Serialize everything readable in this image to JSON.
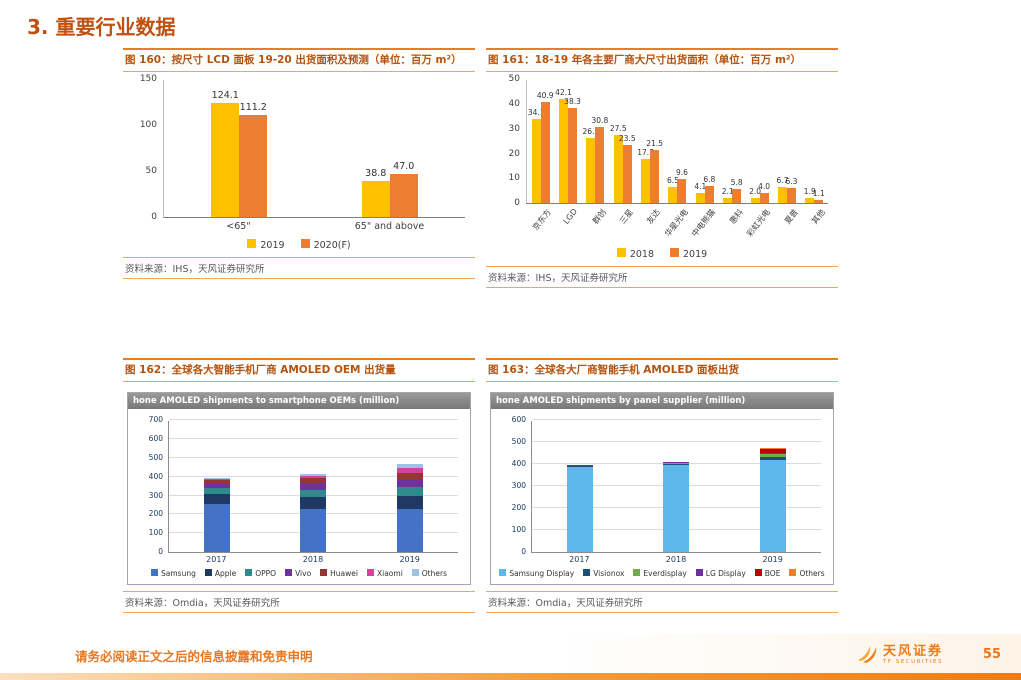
{
  "slide": {
    "title": "3. 重要行业数据",
    "footer": {
      "disclaimer": "请务必阅读正文之后的信息披露和免责申明",
      "brand_name": "天风证券",
      "brand_sub": "TF SECURITIES",
      "page": "55"
    }
  },
  "figures": [
    {
      "title": "图 160：按尺寸 LCD 面板 19-20 出货面积及预测（单位：百万 m²）",
      "source": "资料来源：IHS，天风证券研究所"
    },
    {
      "title": "图 161：18-19 年各主要厂商大尺寸出货面积（单位：百万 m²）",
      "source": "资料来源：IHS，天风证券研究所"
    },
    {
      "title": "图 162：全球各大智能手机厂商 AMOLED OEM 出货量",
      "source": "资料来源：Omdia，天风证券研究所"
    },
    {
      "title": "图 163：全球各大厂商智能手机 AMOLED 面板出货",
      "source": "资料来源：Omdia，天风证券研究所"
    }
  ],
  "chart_data": [
    {
      "type": "bar",
      "title": "按尺寸 LCD 面板 19-20 出货面积及预测（单位：百万 m²）",
      "categories": [
        "<65\"",
        "65\" and above"
      ],
      "series": [
        {
          "name": "2019",
          "color": "#FFC000",
          "values": [
            124.1,
            38.8
          ]
        },
        {
          "name": "2020(F)",
          "color": "#ED7D31",
          "values": [
            111.2,
            47.0
          ]
        }
      ],
      "ylim": [
        0,
        150
      ],
      "yticks": [
        0,
        50,
        100,
        150
      ],
      "show_values": true,
      "grid": false,
      "legend_position": "bottom"
    },
    {
      "type": "bar",
      "title": "18-19 年各主要厂商大尺寸出货面积（单位：百万 m²）",
      "categories": [
        "京东方",
        "LGD",
        "群创",
        "三星",
        "友达",
        "华星光电",
        "中电熊猫",
        "惠科",
        "彩虹光电",
        "夏普",
        "其他"
      ],
      "series": [
        {
          "name": "2018",
          "color": "#FFC000",
          "values": [
            34.1,
            42.1,
            26.2,
            27.5,
            17.7,
            6.5,
            4.1,
            2.1,
            2.0,
            6.7,
            1.9
          ]
        },
        {
          "name": "2019",
          "color": "#ED7D31",
          "values": [
            40.9,
            38.3,
            30.8,
            23.5,
            21.5,
            9.6,
            6.8,
            5.8,
            4.0,
            6.3,
            1.1
          ]
        }
      ],
      "ylim": [
        0,
        50
      ],
      "yticks": [
        0,
        10,
        20,
        30,
        40,
        50
      ],
      "show_values": true,
      "rotate_xlabels": true,
      "grid": false,
      "legend_position": "bottom"
    },
    {
      "type": "stacked-bar",
      "embedded_title": "hone AMOLED shipments to smartphone OEMs (million)",
      "categories": [
        "2017",
        "2018",
        "2019"
      ],
      "series": [
        {
          "name": "Samsung",
          "color": "#4472C4",
          "values": [
            255,
            228,
            230
          ]
        },
        {
          "name": "Apple",
          "color": "#1F3864",
          "values": [
            55,
            65,
            68
          ]
        },
        {
          "name": "OPPO",
          "color": "#2E8B8B",
          "values": [
            28,
            38,
            45
          ]
        },
        {
          "name": "Vivo",
          "color": "#7030A0",
          "values": [
            25,
            35,
            40
          ]
        },
        {
          "name": "Huawei",
          "color": "#943634",
          "values": [
            18,
            28,
            35
          ]
        },
        {
          "name": "Xiaomi",
          "color": "#D2449C",
          "values": [
            6,
            12,
            27
          ]
        },
        {
          "name": "Others",
          "color": "#9CC3E5",
          "values": [
            8,
            9,
            25
          ]
        }
      ],
      "ylim": [
        0,
        700
      ],
      "yticks": [
        0,
        100,
        200,
        300,
        400,
        500,
        600,
        700
      ],
      "grid": true,
      "legend_position": "bottom"
    },
    {
      "type": "stacked-bar",
      "embedded_title": "hone AMOLED shipments by panel supplier (million)",
      "categories": [
        "2017",
        "2018",
        "2019"
      ],
      "series": [
        {
          "name": "Samsung Display",
          "color": "#5BB8E8",
          "values": [
            388,
            398,
            420
          ]
        },
        {
          "name": "Visionox",
          "color": "#1F4E79",
          "values": [
            2,
            3,
            12
          ]
        },
        {
          "name": "Everdisplay",
          "color": "#70AD47",
          "values": [
            3,
            4,
            12
          ]
        },
        {
          "name": "LG Display",
          "color": "#7030A0",
          "values": [
            2,
            3,
            8
          ]
        },
        {
          "name": "BOE",
          "color": "#C00000",
          "values": [
            1,
            2,
            15
          ]
        },
        {
          "name": "Others",
          "color": "#ED7D31",
          "values": [
            2,
            2,
            5
          ]
        }
      ],
      "ylim": [
        0,
        600
      ],
      "yticks": [
        0,
        100,
        200,
        300,
        400,
        500,
        600
      ],
      "grid": true,
      "legend_position": "bottom"
    }
  ]
}
